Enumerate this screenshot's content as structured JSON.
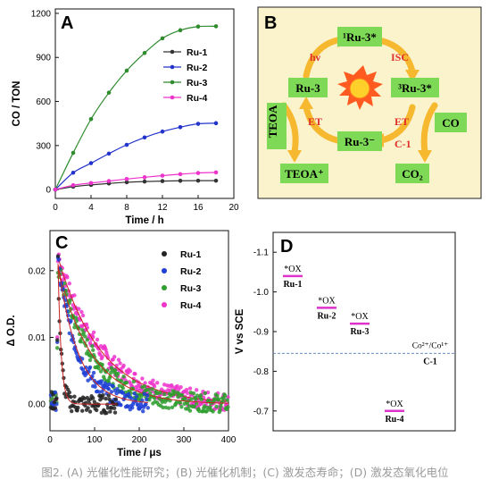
{
  "figure": {
    "caption": "图2. (A) 光催化性能研究；(B) 光催化机制；(C) 激发态寿命；(D) 激发态氧化电位"
  },
  "panels": {
    "A": {
      "letter": "A",
      "chart_data": {
        "type": "line",
        "xlabel": "Time / h",
        "ylabel": "CO / TON",
        "xlim": [
          0,
          20
        ],
        "ylim": [
          -60,
          1230
        ],
        "xticks": [
          "0",
          "4",
          "8",
          "12",
          "16",
          "20"
        ],
        "yticks": [
          "0",
          "300",
          "600",
          "900",
          "1200"
        ],
        "x": [
          0,
          2,
          4,
          6,
          8,
          10,
          12,
          14,
          16,
          18
        ],
        "legend_position": "upper-right",
        "series": [
          {
            "name": "Ru-1",
            "color": "#333333",
            "values": [
              0,
              20,
              32,
              42,
              50,
              55,
              58,
              60,
              61,
              61
            ]
          },
          {
            "name": "Ru-2",
            "color": "#2233cc",
            "values": [
              0,
              115,
              180,
              245,
              305,
              355,
              395,
              425,
              448,
              452
            ]
          },
          {
            "name": "Ru-3",
            "color": "#2e8b2e",
            "values": [
              0,
              250,
              480,
              660,
              810,
              930,
              1030,
              1085,
              1110,
              1112
            ]
          },
          {
            "name": "Ru-4",
            "color": "#ee33cc",
            "values": [
              0,
              30,
              45,
              58,
              72,
              84,
              95,
              105,
              113,
              117
            ]
          }
        ]
      }
    },
    "B": {
      "letter": "B",
      "nodes": {
        "ru3_singlet": "¹Ru-3*",
        "ru3": "Ru-3",
        "ru3_triplet": "³Ru-3*",
        "ru3_reduced": "Ru-3⁻",
        "teoa": "TEOA",
        "teoa_ox": "TEOA⁺",
        "co": "CO",
        "co2": "CO₂"
      },
      "labels": {
        "hv": "hν",
        "isc": "ISC",
        "et_left": "ET",
        "et_right": "ET",
        "catalyst": "C-1"
      },
      "colors": {
        "background": "#fbf3cc",
        "box": "#7ed957",
        "arrow": "#f5b82e",
        "label": "#e0302a"
      }
    },
    "C": {
      "letter": "C",
      "chart_data": {
        "type": "scatter",
        "xlabel": "Time / μs",
        "ylabel": "Δ O.D.",
        "xlim": [
          0,
          400
        ],
        "ylim": [
          -0.004,
          0.026
        ],
        "xticks": [
          "0",
          "100",
          "200",
          "300",
          "400"
        ],
        "yticks": [
          "0.00",
          "0.01",
          "0.02"
        ],
        "legend_position": "upper-right",
        "series": [
          {
            "name": "Ru-1",
            "color": "#222222",
            "amplitude": 0.021,
            "lifetime_us": 7,
            "t_end": 150
          },
          {
            "name": "Ru-2",
            "color": "#1f3fd6",
            "amplitude": 0.021,
            "lifetime_us": 45,
            "t_end": 220
          },
          {
            "name": "Ru-3",
            "color": "#2e9e2e",
            "amplitude": 0.0205,
            "lifetime_us": 75,
            "t_end": 400
          },
          {
            "name": "Ru-4",
            "color": "#ee33cc",
            "amplitude": 0.022,
            "lifetime_us": 95,
            "t_end": 400
          }
        ]
      }
    },
    "D": {
      "letter": "D",
      "chart_data": {
        "type": "scatter",
        "ylabel": "V vs SCE",
        "ylim": [
          -1.15,
          -0.65
        ],
        "yticks": [
          "-1.1",
          "-1.0",
          "-0.9",
          "-0.8",
          "-0.7"
        ],
        "levels": [
          {
            "name": "Ru-1",
            "label": "*OX",
            "value": -1.04,
            "color": "#dd33cc"
          },
          {
            "name": "Ru-2",
            "label": "*OX",
            "value": -0.96,
            "color": "#dd33cc"
          },
          {
            "name": "Ru-3",
            "label": "*OX",
            "value": -0.92,
            "color": "#dd33cc"
          },
          {
            "name": "Ru-4",
            "label": "*OX",
            "value": -0.7,
            "color": "#dd33cc"
          }
        ],
        "reference": {
          "label": "Co²⁺/Co¹⁺",
          "sublabel": "C-1",
          "value": -0.845,
          "color": "#6a8fc0"
        }
      }
    }
  }
}
